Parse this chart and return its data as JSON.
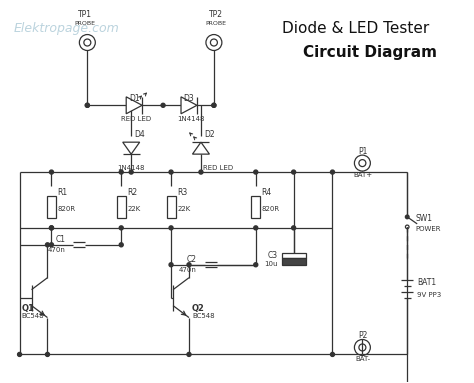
{
  "title_line1": "Diode & LED Tester",
  "title_line2": "Circuit Diagram",
  "watermark": "Elektropage.com",
  "bg_color": "#ffffff",
  "line_color": "#333333",
  "title_fontsize": 11,
  "watermark_color": "#b0ccd8",
  "watermark_fontsize": 9
}
